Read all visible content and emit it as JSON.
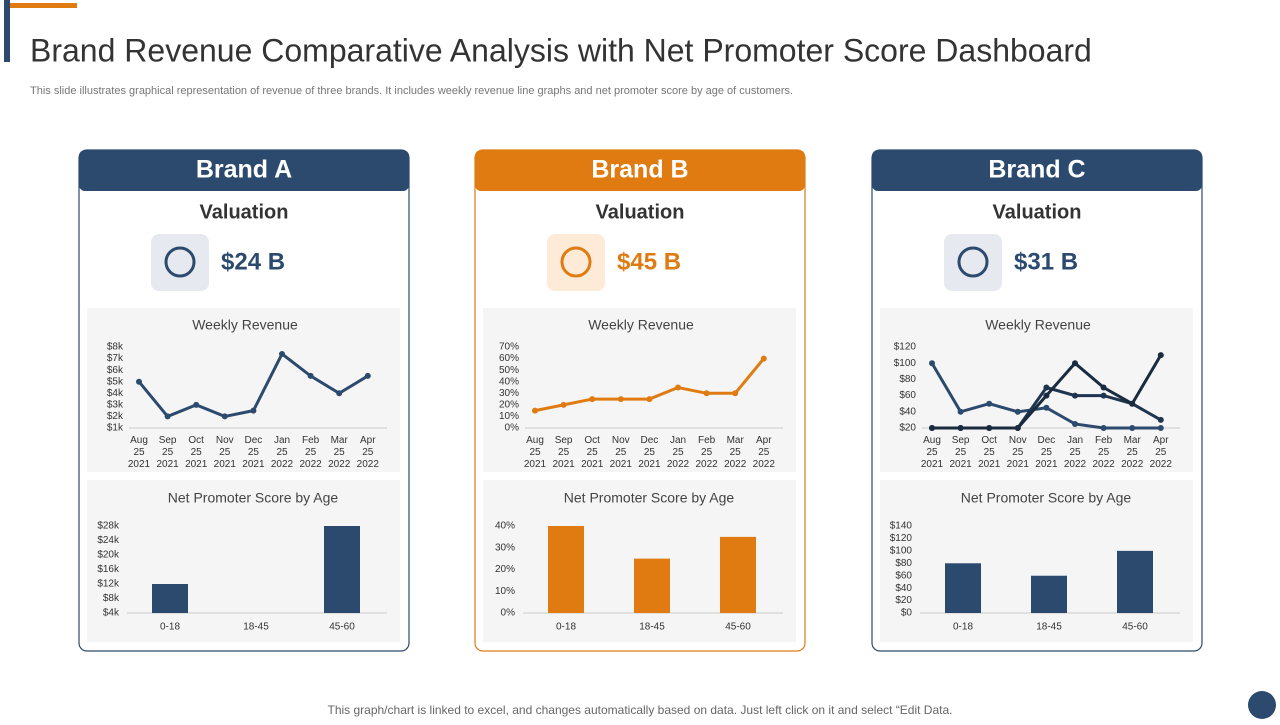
{
  "title": "Brand Revenue Comparative Analysis with Net Promoter Score Dashboard",
  "subtitle": "This slide illustrates graphical representation of revenue of three brands. It includes weekly revenue line graphs and net promoter score by age of customers.",
  "footer": "This graph/chart is linked to excel, and changes automatically based on data. Just left click on it and select “Edit Data.",
  "brands": [
    {
      "name": "Brand A",
      "valuation_heading": "Valuation",
      "valuation": "$24 B",
      "color": "#2c4a6e"
    },
    {
      "name": "Brand B",
      "valuation_heading": "Valuation",
      "valuation": "$45 B",
      "color": "#e07b12"
    },
    {
      "name": "Brand C",
      "valuation_heading": "Valuation",
      "valuation": "$31 B",
      "color": "#2c4a6e"
    }
  ],
  "chart_data": [
    {
      "type": "line",
      "title": "Weekly Revenue",
      "categories": [
        "Aug 25 2021",
        "Sep 25 2021",
        "Oct 25 2021",
        "Nov 25 2021",
        "Dec 25 2021",
        "Jan 25 2022",
        "Feb 25 2022",
        "Mar 25 2022",
        "Apr 25 2022"
      ],
      "values": [
        5,
        2,
        3,
        2,
        2.5,
        7.4,
        5.5,
        4,
        5.5
      ],
      "color": "#2c4a6e",
      "ylim": [
        1,
        8
      ],
      "yticks": [
        {
          "value": 1,
          "label": "$1k"
        },
        {
          "value": 2,
          "label": "$2k"
        },
        {
          "value": 3,
          "label": "$3k"
        },
        {
          "value": 4,
          "label": "$4k"
        },
        {
          "value": 5,
          "label": "$5k"
        },
        {
          "value": 6,
          "label": "$6k"
        },
        {
          "value": 7,
          "label": "$7k"
        },
        {
          "value": 8,
          "label": "$8k"
        }
      ]
    },
    {
      "type": "bar",
      "title": "Net Promoter Score by Age",
      "categories": [
        "0-18",
        "18-45",
        "45-60"
      ],
      "values": [
        12,
        4,
        28
      ],
      "color": "#2c4a6e",
      "ylim": [
        4,
        28
      ],
      "yticks": [
        {
          "value": 4,
          "label": "$4k"
        },
        {
          "value": 8,
          "label": "$8k"
        },
        {
          "value": 12,
          "label": "$12k"
        },
        {
          "value": 16,
          "label": "$16k"
        },
        {
          "value": 20,
          "label": "$20k"
        },
        {
          "value": 24,
          "label": "$24k"
        },
        {
          "value": 28,
          "label": "$28k"
        }
      ]
    },
    {
      "type": "line",
      "title": "Weekly Revenue",
      "categories": [
        "Aug 25 2021",
        "Sep 25 2021",
        "Oct 25 2021",
        "Nov 25 2021",
        "Dec 25 2021",
        "Jan 25 2022",
        "Feb 25 2022",
        "Mar 25 2022",
        "Apr 25 2022"
      ],
      "values": [
        15,
        20,
        25,
        25,
        25,
        35,
        30,
        30,
        60
      ],
      "color": "#e07b12",
      "ylim": [
        0,
        70
      ],
      "yticks": [
        {
          "value": 0,
          "label": "0%"
        },
        {
          "value": 10,
          "label": "10%"
        },
        {
          "value": 20,
          "label": "20%"
        },
        {
          "value": 30,
          "label": "30%"
        },
        {
          "value": 40,
          "label": "40%"
        },
        {
          "value": 50,
          "label": "50%"
        },
        {
          "value": 60,
          "label": "60%"
        },
        {
          "value": 70,
          "label": "70%"
        }
      ]
    },
    {
      "type": "bar",
      "title": "Net Promoter Score by Age",
      "categories": [
        "0-18",
        "18-45",
        "45-60"
      ],
      "values": [
        40,
        25,
        35
      ],
      "color": "#e07b12",
      "ylim": [
        0,
        40
      ],
      "yticks": [
        {
          "value": 0,
          "label": "0%"
        },
        {
          "value": 10,
          "label": "10%"
        },
        {
          "value": 20,
          "label": "20%"
        },
        {
          "value": 30,
          "label": "30%"
        },
        {
          "value": 40,
          "label": "40%"
        }
      ]
    },
    {
      "type": "line",
      "title": "Weekly Revenue",
      "categories": [
        "Aug 25 2021",
        "Sep 25 2021",
        "Oct 25 2021",
        "Nov 25 2021",
        "Dec 25 2021",
        "Jan 25 2022",
        "Feb 25 2022",
        "Mar 25 2022",
        "Apr 25 2022"
      ],
      "series": [
        {
          "color": "#2c4a6e",
          "values": [
            100,
            40,
            50,
            40,
            45,
            25,
            20,
            20,
            20
          ]
        },
        {
          "color": "#1e3550",
          "values": [
            20,
            20,
            20,
            20,
            70,
            60,
            60,
            50,
            30
          ]
        },
        {
          "color": "#1a2b40",
          "values": [
            20,
            20,
            20,
            20,
            60,
            100,
            70,
            50,
            110
          ]
        }
      ],
      "ylim": [
        20,
        120
      ],
      "yticks": [
        {
          "value": 20,
          "label": "$20"
        },
        {
          "value": 40,
          "label": "$40"
        },
        {
          "value": 60,
          "label": "$60"
        },
        {
          "value": 80,
          "label": "$80"
        },
        {
          "value": 100,
          "label": "$100"
        },
        {
          "value": 120,
          "label": "$120"
        }
      ]
    },
    {
      "type": "bar",
      "title": "Net Promoter Score by Age",
      "categories": [
        "0-18",
        "18-45",
        "45-60"
      ],
      "values": [
        80,
        60,
        100
      ],
      "color": "#2c4a6e",
      "ylim": [
        0,
        140
      ],
      "yticks": [
        {
          "value": 0,
          "label": "$0"
        },
        {
          "value": 20,
          "label": "$20"
        },
        {
          "value": 40,
          "label": "$40"
        },
        {
          "value": 60,
          "label": "$60"
        },
        {
          "value": 80,
          "label": "$80"
        },
        {
          "value": 100,
          "label": "$100"
        },
        {
          "value": 120,
          "label": "$120"
        },
        {
          "value": 140,
          "label": "$140"
        }
      ]
    }
  ]
}
